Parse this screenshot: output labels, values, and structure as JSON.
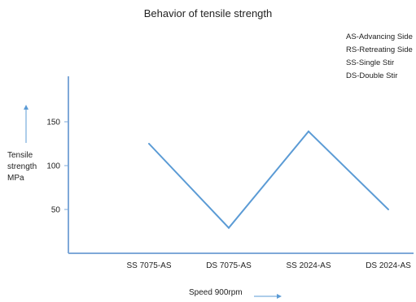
{
  "chart_data": {
    "type": "line",
    "title": "Behavior of tensile strength",
    "categories": [
      "SS 7075-AS",
      "DS 7075-AS",
      "SS 2024-AS",
      "DS 2024-AS"
    ],
    "series": [
      {
        "values": [
          125,
          29,
          139,
          50
        ]
      }
    ],
    "ylabel_lines": [
      "Tensile",
      "strength",
      "MPa"
    ],
    "xlabel": "Speed 900rpm",
    "yticks": [
      50,
      100,
      150
    ],
    "ylim": [
      0,
      200
    ],
    "grid": false,
    "notes": [
      "AS-Advancing Side",
      "RS-Retreating Side",
      "SS-Single Stir",
      "DS-Double Stir"
    ],
    "line_color": "#5b9bd5",
    "axis_color": "#7ea8d8"
  }
}
